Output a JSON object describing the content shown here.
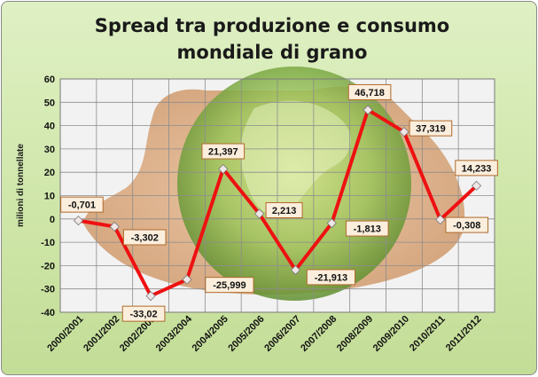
{
  "chart_data": {
    "type": "line",
    "title": "Spread tra produzione e consumo mondiale di grano",
    "ylabel": "milioni di tonnellate",
    "xlabel": "",
    "ylim": [
      -40,
      60
    ],
    "yticks": [
      60,
      50,
      40,
      30,
      20,
      10,
      0,
      -10,
      -20,
      -30,
      -40
    ],
    "grid": true,
    "categories": [
      "2000/2001",
      "2001/2002",
      "2002/2003",
      "2003/2004",
      "2004/2005",
      "2005/2006",
      "2006/2007",
      "2007/2008",
      "2008/2009",
      "2009/2010",
      "2010/2011",
      "2011/2012"
    ],
    "values": [
      -0.701,
      -3.302,
      -33.02,
      -25.999,
      21.397,
      2.213,
      -21.913,
      -1.813,
      46.718,
      37.319,
      -0.308,
      14.233
    ],
    "labels": [
      "-0,701",
      "-3,302",
      "-33,02",
      "-25,999",
      "21,397",
      "2,213",
      "-21,913",
      "-1,813",
      "46,718",
      "37,319",
      "-0,308",
      "14,233"
    ],
    "colors": {
      "line": "#ee1111",
      "marker": "#efe6e6",
      "label_bg": "#fbeedd",
      "label_border": "#b06a2a"
    }
  }
}
